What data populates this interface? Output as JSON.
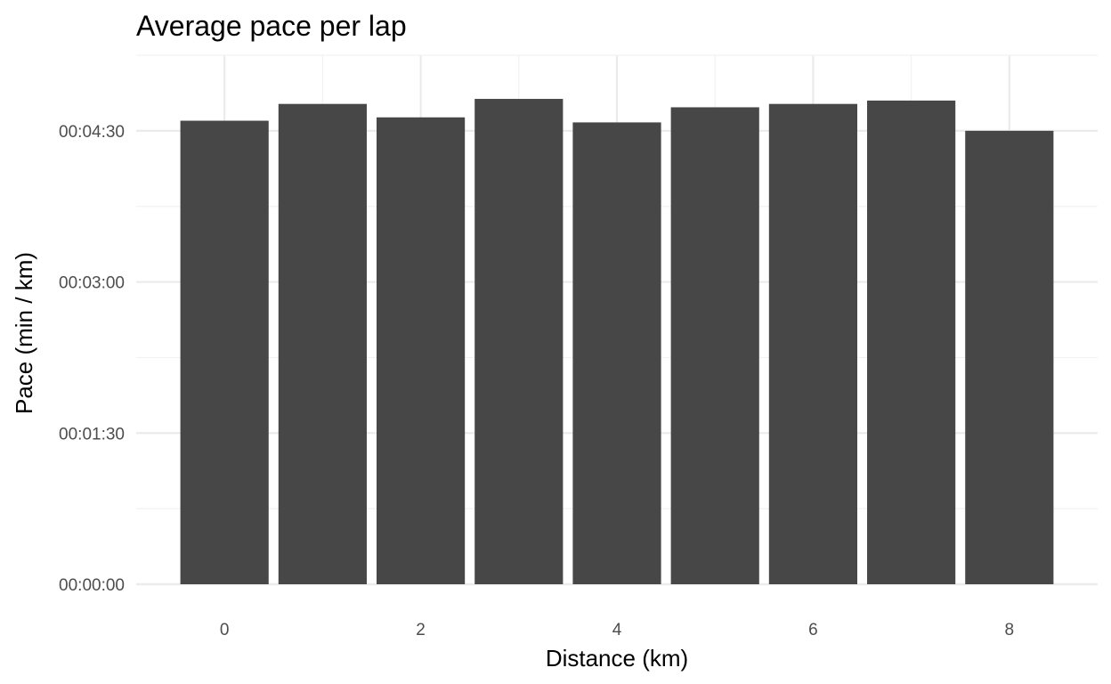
{
  "chart_data": {
    "type": "bar",
    "title": "Average pace per lap",
    "xlabel": "Distance (km)",
    "ylabel": "Pace (min / km)",
    "x": [
      0,
      1,
      2,
      3,
      4,
      5,
      6,
      7,
      8
    ],
    "values_seconds": [
      276,
      286,
      278,
      289,
      275,
      284,
      286,
      288,
      270
    ],
    "xlim": [
      -0.9,
      8.9
    ],
    "ylim_seconds": [
      0,
      315
    ],
    "x_ticks": [
      0,
      2,
      4,
      6,
      8
    ],
    "x_tick_labels": [
      "0",
      "2",
      "4",
      "6",
      "8"
    ],
    "y_ticks_seconds": [
      0,
      90,
      180,
      270
    ],
    "y_tick_labels": [
      "00:00:00",
      "00:01:30",
      "00:03:00",
      "00:04:30"
    ],
    "grid": true,
    "legend": "none",
    "colors": {
      "bar": "#474747",
      "grid_major": "#ebebeb",
      "grid_minor": "#f2f2f2",
      "tick_text": "#4d4d4d"
    }
  }
}
